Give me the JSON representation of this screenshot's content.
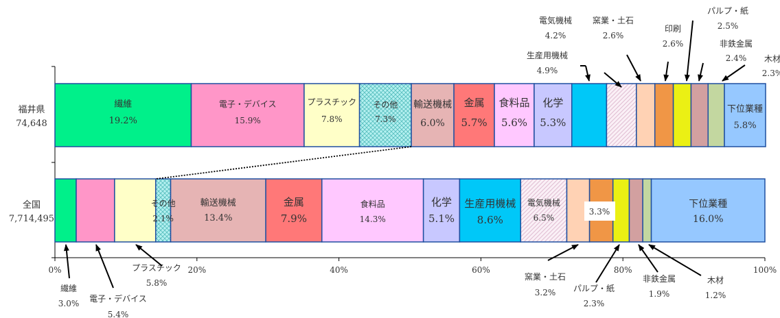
{
  "chart_data": {
    "type": "bar",
    "orientation": "horizontal",
    "stacked": true,
    "percent": true,
    "xlim": [
      0,
      100
    ],
    "grid": false,
    "x_ticks": [
      "0%",
      "20%",
      "40%",
      "60%",
      "80%",
      "100%"
    ],
    "rows": [
      {
        "label": "福井県",
        "total": "74,648",
        "segments": [
          {
            "name": "繊維",
            "value": 19.2,
            "label": "19.2%",
            "color": "#00F08A"
          },
          {
            "name": "電子・デバイス",
            "value": 15.9,
            "label": "15.9%",
            "color": "#FF96C8"
          },
          {
            "name": "プラスチック",
            "value": 7.8,
            "label": "7.8%",
            "color": "#FFFFC8"
          },
          {
            "name": "その他",
            "value": 7.3,
            "label": "7.3%",
            "color": "#A8F0F0",
            "pattern": "cross"
          },
          {
            "name": "輸送機械",
            "value": 6.0,
            "label": "6.0%",
            "color": "#E6B4B4"
          },
          {
            "name": "金属",
            "value": 5.7,
            "label": "5.7%",
            "color": "#FF7878"
          },
          {
            "name": "食料品",
            "value": 5.6,
            "label": "5.6%",
            "color": "#FFC8FF"
          },
          {
            "name": "化学",
            "value": 5.3,
            "label": "5.3%",
            "color": "#C8C8FF"
          },
          {
            "name": "生産用機械",
            "value": 4.9,
            "label": "4.9%",
            "color": "#00C8F8"
          },
          {
            "name": "電気機械",
            "value": 4.2,
            "label": "4.2%",
            "color": "#F0DCEB",
            "pattern": "diag"
          },
          {
            "name": "窯業・土石",
            "value": 2.6,
            "label": "2.6%",
            "color": "#FFD2B4"
          },
          {
            "name": "印刷",
            "value": 2.6,
            "label": "2.6%",
            "color": "#F09646"
          },
          {
            "name": "パルプ・紙",
            "value": 2.5,
            "label": "2.5%",
            "color": "#EBF014"
          },
          {
            "name": "非鉄金属",
            "value": 2.4,
            "label": "2.4%",
            "color": "#D2A0A0"
          },
          {
            "name": "木材",
            "value": 2.3,
            "label": "2.3%",
            "color": "#C3D7A0"
          },
          {
            "name": "下位業種",
            "value": 5.8,
            "label": "5.8%",
            "color": "#96C8FF"
          }
        ]
      },
      {
        "label": "全国",
        "total": "7,714,495",
        "segments": [
          {
            "name": "繊維",
            "value": 3.0,
            "label": "3.0%",
            "color": "#00F08A"
          },
          {
            "name": "電子・デバイス",
            "value": 5.4,
            "label": "5.4%",
            "color": "#FF96C8"
          },
          {
            "name": "プラスチック",
            "value": 5.8,
            "label": "5.8%",
            "color": "#FFFFC8"
          },
          {
            "name": "その他",
            "value": 2.1,
            "label": "2.1%",
            "color": "#A8F0F0",
            "pattern": "cross"
          },
          {
            "name": "輸送機械",
            "value": 13.4,
            "label": "13.4%",
            "color": "#E6B4B4"
          },
          {
            "name": "金属",
            "value": 7.9,
            "label": "7.9%",
            "color": "#FF7878"
          },
          {
            "name": "食料品",
            "value": 14.3,
            "label": "14.3%",
            "color": "#FFC8FF"
          },
          {
            "name": "化学",
            "value": 5.1,
            "label": "5.1%",
            "color": "#C8C8FF"
          },
          {
            "name": "生産用機械",
            "value": 8.6,
            "label": "8.6%",
            "color": "#00C8F8"
          },
          {
            "name": "電気機械",
            "value": 6.5,
            "label": "6.5%",
            "color": "#F0DCEB",
            "pattern": "diag"
          },
          {
            "name": "窯業・土石",
            "value": 3.2,
            "label": "3.2%",
            "color": "#FFD2B4"
          },
          {
            "name": "印刷",
            "value": 3.3,
            "label": "3.3%",
            "color": "#F09646"
          },
          {
            "name": "パルプ・紙",
            "value": 2.3,
            "label": "2.3%",
            "color": "#EBF014"
          },
          {
            "name": "非鉄金属",
            "value": 1.9,
            "label": "1.9%",
            "color": "#D2A0A0"
          },
          {
            "name": "木材",
            "value": 1.2,
            "label": "1.2%",
            "color": "#C3D7A0"
          },
          {
            "name": "下位業種",
            "value": 16.0,
            "label": "16.0%",
            "color": "#96C8FF"
          }
        ]
      }
    ]
  }
}
